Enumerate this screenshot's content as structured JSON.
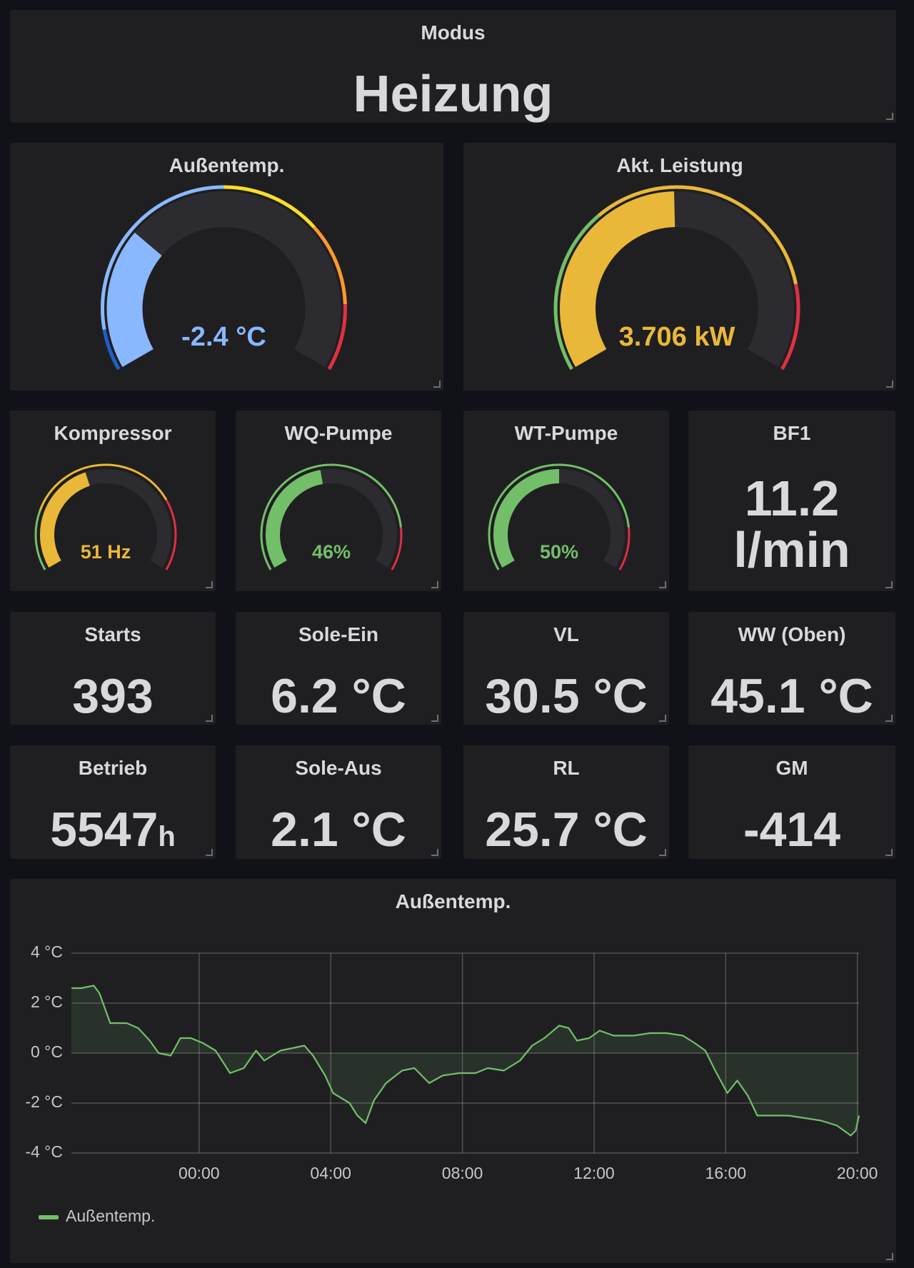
{
  "modus": {
    "title": "Modus",
    "value": "Heizung"
  },
  "gauges": [
    {
      "title": "Außentemp.",
      "value": -2.4,
      "value_label": "-2.4 °C",
      "range": [
        -20,
        40
      ],
      "color": "#8ab8ff",
      "thresholds": [
        {
          "from": -20,
          "color": "#1f60c4"
        },
        {
          "from": -15,
          "color": "#8ab8ff"
        },
        {
          "from": 10,
          "color": "#fade2a"
        },
        {
          "from": 22,
          "color": "#ff9830"
        },
        {
          "from": 32,
          "color": "#e02f44"
        }
      ]
    },
    {
      "title": "Akt. Leistung",
      "value": 3.706,
      "value_label": "3.706 kW",
      "range": [
        0,
        7.5
      ],
      "color": "#eab839",
      "thresholds": [
        {
          "from": 0,
          "color": "#73bf69"
        },
        {
          "from": 2.5,
          "color": "#eab839"
        },
        {
          "from": 6.2,
          "color": "#e02f44"
        }
      ]
    },
    {
      "title": "Kompressor",
      "value": 51,
      "value_label": "51 Hz",
      "range": [
        0,
        120
      ],
      "color": "#eab839",
      "thresholds": [
        {
          "from": 0,
          "color": "#73bf69"
        },
        {
          "from": 25,
          "color": "#eab839"
        },
        {
          "from": 90,
          "color": "#e02f44"
        }
      ]
    },
    {
      "title": "WQ-Pumpe",
      "value": 46,
      "value_label": "46%",
      "range": [
        0,
        100
      ],
      "color": "#73bf69",
      "thresholds": [
        {
          "from": 0,
          "color": "#73bf69"
        },
        {
          "from": 85,
          "color": "#e02f44"
        }
      ]
    },
    {
      "title": "WT-Pumpe",
      "value": 50,
      "value_label": "50%",
      "range": [
        0,
        100
      ],
      "color": "#73bf69",
      "thresholds": [
        {
          "from": 0,
          "color": "#73bf69"
        },
        {
          "from": 85,
          "color": "#e02f44"
        }
      ]
    }
  ],
  "bf1": {
    "title": "BF1",
    "value": "11.2",
    "unit": "l/min"
  },
  "stats": [
    {
      "title": "Starts",
      "value": "393"
    },
    {
      "title": "Sole-Ein",
      "value": "6.2 °C"
    },
    {
      "title": "VL",
      "value": "30.5 °C"
    },
    {
      "title": "WW (Oben)",
      "value": "45.1 °C"
    },
    {
      "title": "Betrieb",
      "value": "5547",
      "unit": "h"
    },
    {
      "title": "Sole-Aus",
      "value": "2.1 °C"
    },
    {
      "title": "RL",
      "value": "25.7 °C"
    },
    {
      "title": "GM",
      "value": "-414"
    }
  ],
  "chart_data": {
    "type": "line",
    "title": "Außentemp.",
    "x": [
      -3.88,
      -3.58,
      -3.2,
      -3.03,
      -2.7,
      -2.2,
      -1.85,
      -1.5,
      -1.23,
      -0.86,
      -0.57,
      -0.25,
      0.12,
      0.5,
      0.94,
      1.36,
      1.73,
      1.98,
      2.47,
      2.84,
      3.2,
      3.46,
      3.83,
      4.07,
      4.57,
      4.81,
      5.06,
      5.31,
      5.68,
      6.17,
      6.54,
      6.99,
      7.4,
      7.9,
      8.4,
      8.77,
      9.26,
      9.75,
      10.12,
      10.49,
      10.94,
      11.23,
      11.48,
      11.85,
      12.17,
      12.59,
      13.2,
      13.7,
      14.2,
      14.7,
      15.06,
      15.38,
      15.68,
      16.05,
      16.35,
      16.67,
      16.96,
      17.41,
      17.9,
      18.4,
      18.89,
      19.38,
      19.8,
      19.95,
      20.05
    ],
    "series": [
      {
        "name": "Außentemp.",
        "color": "#73bf69",
        "values": [
          2.6,
          2.6,
          2.7,
          2.4,
          1.2,
          1.2,
          1.0,
          0.5,
          0,
          -0.1,
          0.6,
          0.6,
          0.4,
          0.1,
          -0.8,
          -0.6,
          0.1,
          -0.3,
          0.1,
          0.2,
          0.3,
          -0.1,
          -0.9,
          -1.6,
          -2.0,
          -2.5,
          -2.8,
          -1.9,
          -1.2,
          -0.7,
          -0.6,
          -1.2,
          -0.9,
          -0.8,
          -0.8,
          -0.6,
          -0.7,
          -0.3,
          0.3,
          0.6,
          1.1,
          1.0,
          0.5,
          0.6,
          0.9,
          0.7,
          0.7,
          0.8,
          0.8,
          0.7,
          0.4,
          0.1,
          -0.7,
          -1.6,
          -1.1,
          -1.7,
          -2.5,
          -2.5,
          -2.5,
          -2.6,
          -2.7,
          -2.9,
          -3.3,
          -3.1,
          -2.5
        ]
      }
    ],
    "xlim": [
      -3.88,
      20.05
    ],
    "xticks": [
      {
        "value": 0,
        "label": "00:00"
      },
      {
        "value": 4,
        "label": "04:00"
      },
      {
        "value": 8,
        "label": "08:00"
      },
      {
        "value": 12,
        "label": "12:00"
      },
      {
        "value": 16,
        "label": "16:00"
      },
      {
        "value": 20,
        "label": "20:00"
      }
    ],
    "ylim": [
      -4,
      4
    ],
    "yticks": [
      {
        "value": 4,
        "label": "4 °C"
      },
      {
        "value": 2,
        "label": "2 °C"
      },
      {
        "value": 0,
        "label": "0 °C"
      },
      {
        "value": -2,
        "label": "-2 °C"
      },
      {
        "value": -4,
        "label": "-4 °C"
      }
    ],
    "grid": true
  }
}
